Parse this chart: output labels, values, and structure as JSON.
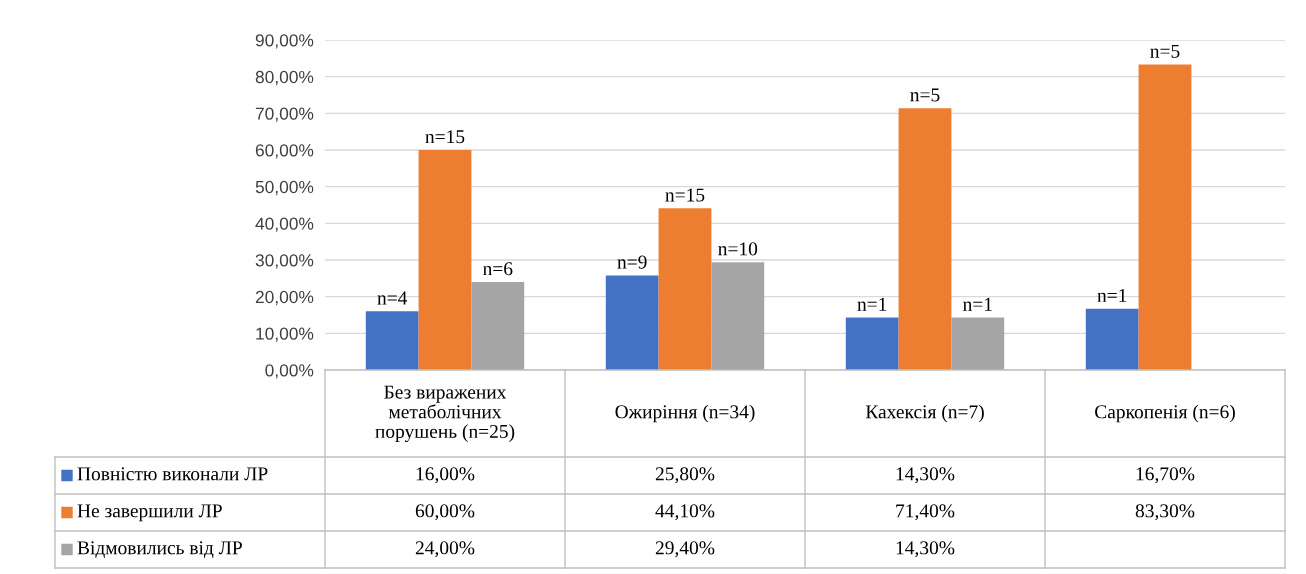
{
  "chart_data": {
    "type": "bar",
    "categories": [
      "Без виражених метаболічних порушень (n=25)",
      "Ожиріння (n=34)",
      "Кахексія (n=7)",
      "Саркопенія (n=6)"
    ],
    "series": [
      {
        "name": "Повністю виконали ЛР",
        "color": "#4472c4",
        "values": [
          16.0,
          25.8,
          14.3,
          16.7
        ],
        "value_labels": [
          "16,00%",
          "25,80%",
          "14,30%",
          "16,70%"
        ]
      },
      {
        "name": "Не завершили ЛР",
        "color": "#ed7d31",
        "values": [
          60.0,
          44.1,
          71.4,
          83.3
        ],
        "value_labels": [
          "60,00%",
          "44,10%",
          "71,40%",
          "83,30%"
        ]
      },
      {
        "name": "Відмовились від ЛР",
        "color": "#a5a5a5",
        "values": [
          24.0,
          29.4,
          14.3,
          null
        ],
        "value_labels": [
          "24,00%",
          "29,40%",
          "14,30%",
          null
        ]
      }
    ],
    "ylim": [
      0,
      90
    ],
    "yticks": [
      {
        "value": 0,
        "label": "0,00%"
      },
      {
        "value": 10,
        "label": "10,00%"
      },
      {
        "value": 20,
        "label": "20,00%"
      },
      {
        "value": 30,
        "label": "30,00%"
      },
      {
        "value": 40,
        "label": "40,00%"
      },
      {
        "value": 50,
        "label": "50,00%"
      },
      {
        "value": 60,
        "label": "60,00%"
      },
      {
        "value": 70,
        "label": "70,00%"
      },
      {
        "value": 80,
        "label": "80,00%"
      },
      {
        "value": 90,
        "label": "90,00%"
      }
    ],
    "grid": "y",
    "legend": "bottom",
    "annotations": [
      "n=4",
      "n=15",
      "n=6",
      "n=9",
      "n=15",
      "n=10",
      "n=1",
      "n=5",
      "n=1",
      "n=1",
      "n=5"
    ]
  }
}
